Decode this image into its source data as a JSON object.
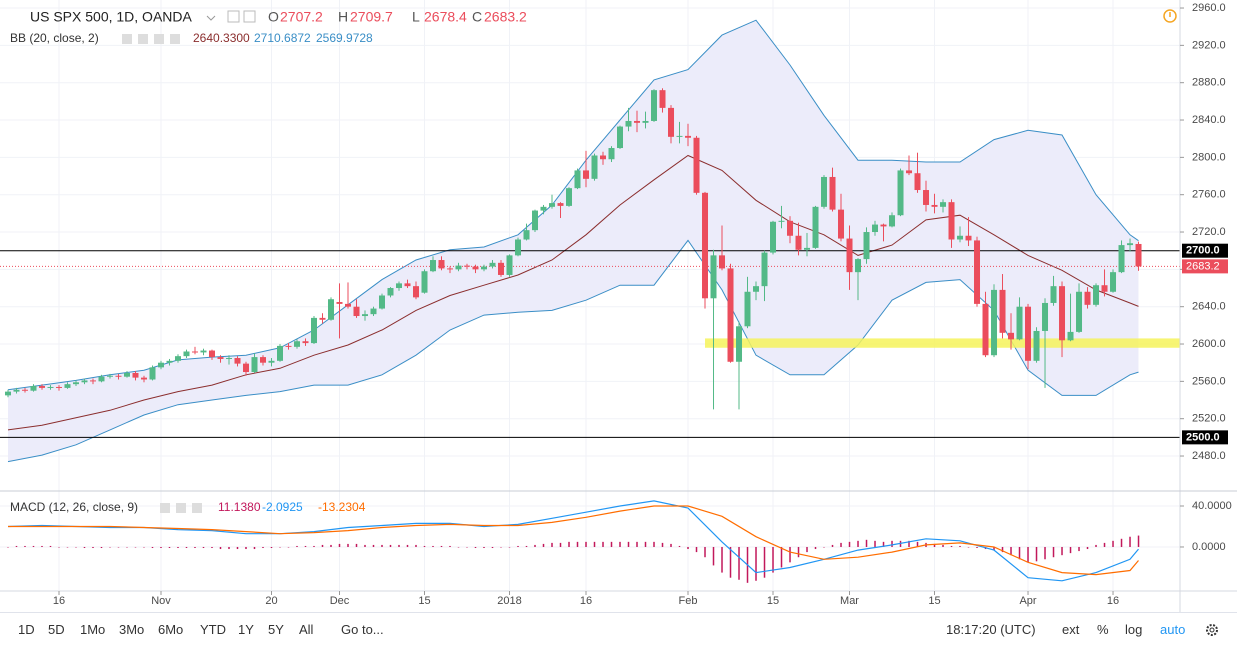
{
  "chart_data": {
    "type": "candlestick",
    "symbol": "US SPX 500, 1D, OANDA",
    "ohlc_keys": [
      "O",
      "H",
      "L",
      "C"
    ],
    "ylim": [
      2443.6,
      2968.6
    ],
    "yticks": [
      {
        "value": 2960,
        "label": "2960.0"
      },
      {
        "value": 2920,
        "label": "2920.0"
      },
      {
        "value": 2880,
        "label": "2880.0"
      },
      {
        "value": 2840,
        "label": "2840.0"
      },
      {
        "value": 2800,
        "label": "2800.0"
      },
      {
        "value": 2760,
        "label": "2760.0"
      },
      {
        "value": 2720,
        "label": "2720.0"
      },
      {
        "value": 2680,
        "label": "2680.0"
      },
      {
        "value": 2640,
        "label": "2640.0"
      },
      {
        "value": 2600,
        "label": "2600.0"
      },
      {
        "value": 2560,
        "label": "2560.0"
      },
      {
        "value": 2520,
        "label": "2520.0"
      },
      {
        "value": 2480,
        "label": "2480.0"
      }
    ],
    "xlim": [
      -0.94,
      137.88
    ],
    "xticks": [
      {
        "value": 6,
        "label": "16"
      },
      {
        "value": 18,
        "label": "Nov"
      },
      {
        "value": 31,
        "label": "20"
      },
      {
        "value": 39,
        "label": "Dec"
      },
      {
        "value": 49,
        "label": "15"
      },
      {
        "value": 59,
        "label": "2018"
      },
      {
        "value": 68,
        "label": "16"
      },
      {
        "value": 80,
        "label": "Feb"
      },
      {
        "value": 90,
        "label": "15"
      },
      {
        "value": 99,
        "label": "Mar"
      },
      {
        "value": 109,
        "label": "15"
      },
      {
        "value": 120,
        "label": "Apr"
      },
      {
        "value": 130,
        "label": "16"
      }
    ],
    "grid": true,
    "up_color": "#53b987",
    "down_color": "#eb4d5c",
    "candles": [
      [
        2545,
        2551,
        2543,
        2549
      ],
      [
        2549,
        2553,
        2547,
        2551
      ],
      [
        2551,
        2553,
        2548,
        2550
      ],
      [
        2550,
        2557,
        2549,
        2555
      ],
      [
        2555,
        2557,
        2551,
        2553
      ],
      [
        2553,
        2556,
        2551,
        2554
      ],
      [
        2554,
        2556,
        2550,
        2553
      ],
      [
        2553,
        2559,
        2552,
        2557
      ],
      [
        2557,
        2561,
        2555,
        2559
      ],
      [
        2559,
        2563,
        2557,
        2561
      ],
      [
        2561,
        2563,
        2557,
        2560
      ],
      [
        2560,
        2567,
        2559,
        2565
      ],
      [
        2565,
        2568,
        2563,
        2566
      ],
      [
        2566,
        2568,
        2562,
        2565
      ],
      [
        2565,
        2571,
        2564,
        2569
      ],
      [
        2569,
        2571,
        2561,
        2564
      ],
      [
        2564,
        2566,
        2559,
        2562
      ],
      [
        2562,
        2577,
        2561,
        2575
      ],
      [
        2575,
        2582,
        2573,
        2580
      ],
      [
        2580,
        2584,
        2577,
        2582
      ],
      [
        2582,
        2589,
        2580,
        2587
      ],
      [
        2587,
        2594,
        2585,
        2592
      ],
      [
        2592,
        2597,
        2589,
        2591
      ],
      [
        2591,
        2595,
        2588,
        2593
      ],
      [
        2593,
        2594,
        2583,
        2586
      ],
      [
        2586,
        2588,
        2580,
        2584
      ],
      [
        2584,
        2588,
        2578,
        2585
      ],
      [
        2585,
        2587,
        2576,
        2579
      ],
      [
        2579,
        2581,
        2566,
        2570
      ],
      [
        2570,
        2590,
        2569,
        2586
      ],
      [
        2586,
        2588,
        2577,
        2580
      ],
      [
        2580,
        2585,
        2576,
        2582
      ],
      [
        2582,
        2600,
        2581,
        2598
      ],
      [
        2598,
        2601,
        2594,
        2597
      ],
      [
        2597,
        2605,
        2595,
        2603
      ],
      [
        2603,
        2606,
        2598,
        2601
      ],
      [
        2601,
        2630,
        2600,
        2628
      ],
      [
        2628,
        2633,
        2622,
        2626
      ],
      [
        2626,
        2650,
        2625,
        2648
      ],
      [
        2645,
        2665,
        2606,
        2643
      ],
      [
        2643,
        2666,
        2638,
        2640
      ],
      [
        2640,
        2648,
        2628,
        2630
      ],
      [
        2630,
        2636,
        2625,
        2632
      ],
      [
        2632,
        2640,
        2630,
        2638
      ],
      [
        2638,
        2654,
        2637,
        2652
      ],
      [
        2652,
        2661,
        2650,
        2660
      ],
      [
        2660,
        2667,
        2657,
        2665
      ],
      [
        2665,
        2669,
        2660,
        2662
      ],
      [
        2662,
        2667,
        2648,
        2650
      ],
      [
        2655,
        2680,
        2654,
        2678
      ],
      [
        2678,
        2694,
        2677,
        2690
      ],
      [
        2690,
        2694,
        2679,
        2681
      ],
      [
        2681,
        2683,
        2676,
        2680
      ],
      [
        2680,
        2687,
        2678,
        2684
      ],
      [
        2684,
        2686,
        2680,
        2683
      ],
      [
        2683,
        2685,
        2676,
        2680
      ],
      [
        2680,
        2685,
        2678,
        2683
      ],
      [
        2683,
        2690,
        2681,
        2687
      ],
      [
        2687,
        2690,
        2672,
        2674
      ],
      [
        2674,
        2696,
        2672,
        2695
      ],
      [
        2695,
        2714,
        2694,
        2712
      ],
      [
        2712,
        2729,
        2711,
        2722
      ],
      [
        2722,
        2744,
        2720,
        2743
      ],
      [
        2743,
        2749,
        2739,
        2747
      ],
      [
        2747,
        2760,
        2745,
        2751
      ],
      [
        2751,
        2752,
        2735,
        2748
      ],
      [
        2748,
        2768,
        2747,
        2767
      ],
      [
        2767,
        2788,
        2766,
        2786
      ],
      [
        2786,
        2807,
        2768,
        2777
      ],
      [
        2777,
        2804,
        2775,
        2802
      ],
      [
        2802,
        2806,
        2792,
        2798
      ],
      [
        2798,
        2812,
        2795,
        2810
      ],
      [
        2810,
        2834,
        2809,
        2833
      ],
      [
        2833,
        2853,
        2828,
        2839
      ],
      [
        2839,
        2850,
        2827,
        2837
      ],
      [
        2837,
        2849,
        2831,
        2839
      ],
      [
        2839,
        2873,
        2838,
        2872
      ],
      [
        2872,
        2874,
        2848,
        2853
      ],
      [
        2853,
        2856,
        2815,
        2822
      ],
      [
        2822,
        2838,
        2815,
        2823
      ],
      [
        2823,
        2836,
        2812,
        2821
      ],
      [
        2821,
        2823,
        2760,
        2762
      ],
      [
        2762,
        2763,
        2638,
        2649
      ],
      [
        2649,
        2701,
        2530,
        2695
      ],
      [
        2695,
        2727,
        2679,
        2681
      ],
      [
        2681,
        2686,
        2580,
        2581
      ],
      [
        2581,
        2624,
        2530,
        2619
      ],
      [
        2619,
        2672,
        2617,
        2656
      ],
      [
        2656,
        2667,
        2647,
        2662
      ],
      [
        2662,
        2700,
        2646,
        2698
      ],
      [
        2698,
        2732,
        2696,
        2731
      ],
      [
        2731,
        2748,
        2724,
        2732
      ],
      [
        2732,
        2737,
        2708,
        2716
      ],
      [
        2716,
        2730,
        2695,
        2701
      ],
      [
        2701,
        2719,
        2694,
        2703
      ],
      [
        2703,
        2748,
        2702,
        2747
      ],
      [
        2747,
        2781,
        2745,
        2779
      ],
      [
        2779,
        2789,
        2742,
        2744
      ],
      [
        2744,
        2761,
        2710,
        2713
      ],
      [
        2713,
        2727,
        2658,
        2677
      ],
      [
        2677,
        2692,
        2647,
        2691
      ],
      [
        2691,
        2725,
        2686,
        2720
      ],
      [
        2720,
        2732,
        2716,
        2728
      ],
      [
        2728,
        2729,
        2710,
        2726
      ],
      [
        2726,
        2741,
        2725,
        2738
      ],
      [
        2738,
        2788,
        2737,
        2786
      ],
      [
        2786,
        2802,
        2781,
        2783
      ],
      [
        2783,
        2805,
        2762,
        2765
      ],
      [
        2765,
        2775,
        2742,
        2749
      ],
      [
        2749,
        2761,
        2740,
        2747
      ],
      [
        2747,
        2755,
        2741,
        2752
      ],
      [
        2752,
        2755,
        2703,
        2712
      ],
      [
        2712,
        2726,
        2709,
        2716
      ],
      [
        2716,
        2736,
        2705,
        2711
      ],
      [
        2711,
        2715,
        2640,
        2643
      ],
      [
        2643,
        2656,
        2586,
        2588
      ],
      [
        2588,
        2664,
        2586,
        2658
      ],
      [
        2658,
        2675,
        2606,
        2612
      ],
      [
        2612,
        2633,
        2594,
        2605
      ],
      [
        2605,
        2650,
        2604,
        2640
      ],
      [
        2640,
        2643,
        2573,
        2582
      ],
      [
        2582,
        2618,
        2580,
        2614
      ],
      [
        2614,
        2649,
        2553,
        2644
      ],
      [
        2644,
        2673,
        2641,
        2662
      ],
      [
        2662,
        2667,
        2586,
        2604
      ],
      [
        2604,
        2654,
        2603,
        2613
      ],
      [
        2613,
        2665,
        2612,
        2656
      ],
      [
        2656,
        2661,
        2638,
        2642
      ],
      [
        2642,
        2665,
        2640,
        2663
      ],
      [
        2663,
        2680,
        2651,
        2656
      ],
      [
        2656,
        2680,
        2655,
        2677
      ],
      [
        2677,
        2711,
        2676,
        2706
      ],
      [
        2706,
        2713,
        2699,
        2708
      ],
      [
        2707.2,
        2709.7,
        2678.4,
        2683.2
      ]
    ],
    "bollinger": {
      "label": "BB (20, close, 2)",
      "legend_values": [
        "2640.3300",
        "2710.6872",
        "2569.9728"
      ],
      "x": [
        0,
        4,
        8,
        12,
        16,
        20,
        24,
        28,
        32,
        36,
        40,
        44,
        48,
        52,
        56,
        60,
        64,
        68,
        72,
        76,
        80,
        84,
        88,
        92,
        96,
        100,
        104,
        108,
        112,
        116,
        120,
        124,
        128,
        132,
        133
      ],
      "upper": [
        2551,
        2556,
        2561,
        2567,
        2572,
        2583,
        2586,
        2588,
        2596,
        2615,
        2642,
        2669,
        2690,
        2701,
        2704,
        2717,
        2749,
        2797,
        2840,
        2883,
        2894,
        2931,
        2947,
        2899,
        2845,
        2797,
        2797,
        2795,
        2795,
        2819,
        2829,
        2824,
        2760,
        2717,
        2710.69
      ],
      "middle": [
        2508,
        2513,
        2521,
        2529,
        2540,
        2549,
        2556,
        2567,
        2574,
        2588,
        2599,
        2615,
        2636,
        2652,
        2663,
        2674,
        2690,
        2717,
        2749,
        2776,
        2802,
        2786,
        2754,
        2731,
        2717,
        2695,
        2706,
        2733,
        2738,
        2717,
        2695,
        2679,
        2658,
        2644,
        2640.33
      ],
      "lower": [
        2474,
        2481,
        2492,
        2508,
        2524,
        2535,
        2540,
        2545,
        2549,
        2556,
        2556,
        2567,
        2588,
        2615,
        2631,
        2634,
        2636,
        2647,
        2663,
        2663,
        2711,
        2658,
        2588,
        2567,
        2567,
        2599,
        2647,
        2666,
        2669,
        2636,
        2572,
        2545,
        2545,
        2567,
        2569.97
      ],
      "band_color": "#3a8ec6",
      "middle_color": "#8b2e2e",
      "fill": "#ececfa"
    },
    "levels": [
      {
        "value": 2700,
        "label": "2700.0"
      },
      {
        "value": 2500,
        "label": "2500.0"
      }
    ],
    "support_zone": {
      "from": 82,
      "low": 2596,
      "high": 2606,
      "color": "#f6f35a"
    },
    "macd": {
      "label": "MACD (12, 26, close, 9)",
      "legend_values": [
        "11.1380",
        "-2.0925",
        "-13.2304"
      ],
      "ylim": [
        -42,
        52.7
      ],
      "yticks": [
        {
          "value": 40,
          "label": "40.0000"
        },
        {
          "value": 0,
          "label": "0.0000"
        }
      ],
      "x": [
        0,
        4,
        8,
        12,
        16,
        20,
        24,
        28,
        32,
        36,
        40,
        44,
        48,
        52,
        56,
        60,
        64,
        68,
        72,
        76,
        80,
        84,
        88,
        92,
        96,
        100,
        104,
        108,
        112,
        116,
        120,
        124,
        128,
        132,
        133
      ],
      "macd": [
        20,
        21,
        20,
        19,
        19,
        17,
        16,
        13,
        13,
        15,
        19,
        21,
        23,
        23,
        20,
        22,
        28,
        34,
        40,
        45,
        38,
        5,
        -25,
        -20,
        -12,
        -3,
        2,
        8,
        6,
        -3,
        -30,
        -33,
        -25,
        -12,
        -2.0925
      ],
      "signal": [
        20,
        20,
        20,
        20,
        19,
        18,
        17,
        15,
        13,
        14,
        16,
        19,
        21,
        22,
        21,
        21,
        24,
        29,
        35,
        40,
        40,
        30,
        10,
        -5,
        -12,
        -10,
        -5,
        2,
        4,
        0,
        -15,
        -25,
        -27,
        -23,
        -13.2304
      ],
      "histogram": [
        0,
        1,
        1,
        1,
        1,
        1,
        0,
        0,
        0,
        -1,
        -1,
        -1,
        0,
        0,
        0,
        0,
        0,
        -1,
        -1,
        -1,
        -1,
        -1,
        -1,
        -1,
        -1,
        -2,
        -2,
        -2,
        -2,
        -2,
        -1,
        -1,
        0,
        0,
        1,
        1,
        1,
        2,
        2,
        3,
        3,
        3,
        2,
        2,
        2,
        2,
        2,
        2,
        2,
        1,
        1,
        1,
        1,
        0,
        0,
        -1,
        -1,
        -1,
        0,
        0,
        1,
        1,
        2,
        3,
        4,
        4,
        5,
        5,
        5,
        5,
        5,
        5,
        5,
        5,
        5,
        5,
        5,
        4,
        3,
        1,
        -2,
        -5,
        -10,
        -18,
        -25,
        -30,
        -32,
        -35,
        -33,
        -30,
        -25,
        -20,
        -15,
        -10,
        -5,
        -2,
        0,
        2,
        4,
        5,
        6,
        7,
        6,
        5,
        6,
        6,
        6,
        5,
        4,
        3,
        2,
        1,
        1,
        0,
        -1,
        -2,
        -3,
        -5,
        -8,
        -12,
        -15,
        -14,
        -12,
        -10,
        -8,
        -6,
        -4,
        -2,
        2,
        4,
        6,
        8,
        10,
        11.138
      ],
      "macd_color": "#2196f3",
      "signal_color": "#ff6d00",
      "histogram_color": "#c2185b"
    }
  },
  "toolbar": {
    "ranges": [
      "1D",
      "5D",
      "1Mo",
      "3Mo",
      "6Mo",
      "YTD",
      "1Y",
      "5Y",
      "All"
    ],
    "goto": "Go to...",
    "clock": "18:17:20 (UTC)",
    "options": [
      "ext",
      "%",
      "log",
      "auto"
    ]
  }
}
